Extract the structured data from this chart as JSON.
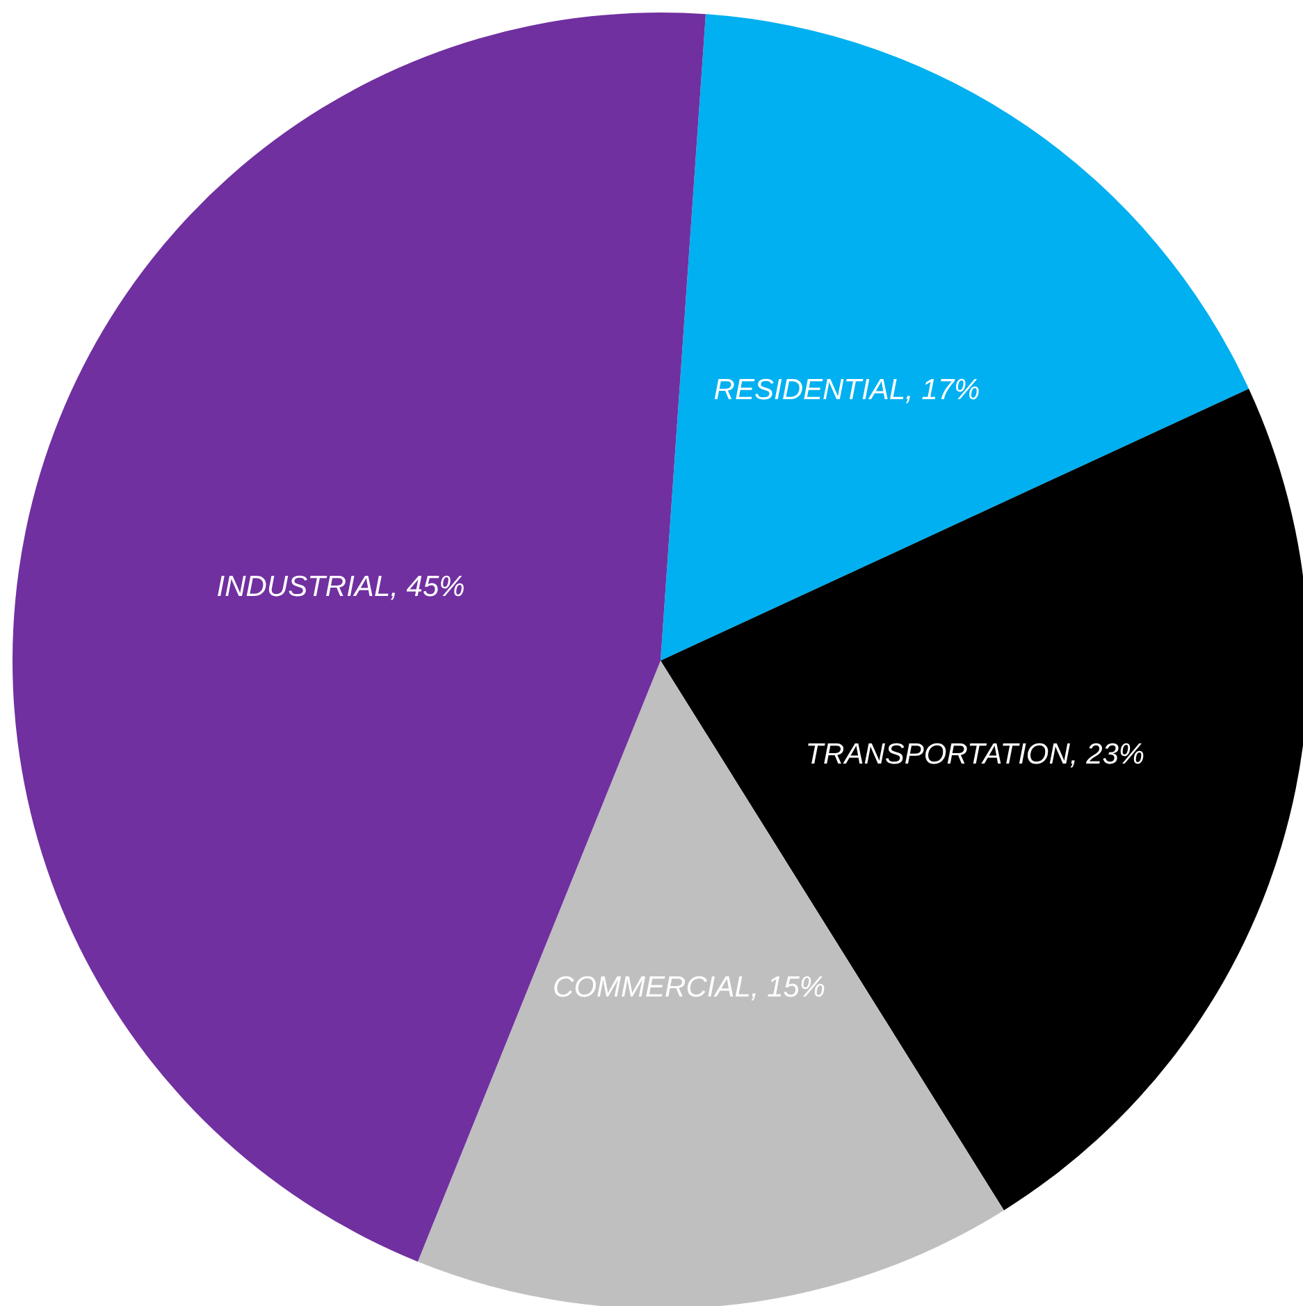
{
  "chart_data": {
    "type": "pie",
    "categories": [
      "RESIDENTIAL",
      "TRANSPORTATION",
      "COMMERCIAL",
      "INDUSTRIAL"
    ],
    "values": [
      17,
      23,
      15,
      45
    ],
    "value_labels": [
      "17%",
      "23%",
      "15%",
      "45%"
    ],
    "colors": [
      "#00b0f0",
      "#000000",
      "#bfbfbf",
      "#7030a0"
    ],
    "legend": false
  }
}
